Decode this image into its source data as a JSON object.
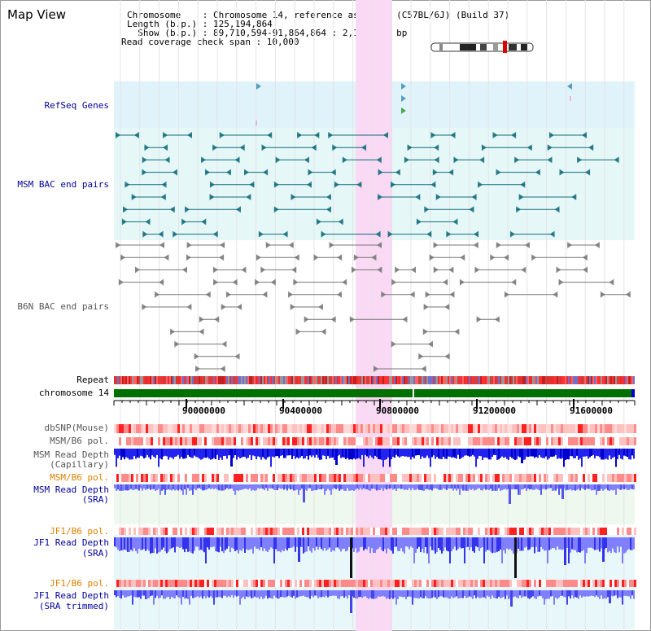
{
  "header": {
    "title": "Map View",
    "info_lines": [
      "Chromosome    : Chromosome 14, reference assembly (C57BL/6J) (Build 37)",
      "Length (b.p.) : 125,194,864",
      "  Show (b.p.) : 89,710,594-91,864,864 : 2,154,271 bp",
      "Read coverage check span : 10,000"
    ]
  },
  "labels": {
    "refseq": "RefSeq Genes",
    "msm_bac": "MSM BAC end pairs",
    "b6n_bac": "B6N BAC end pairs",
    "repeat": "Repeat",
    "chromosome": "chromosome 14",
    "dbsnp": "dbSNP(Mouse)",
    "msm_b6_pol_1": "MSM/B6 pol.",
    "msm_depth_cap_1": "MSM Read Depth",
    "msm_depth_cap_2": "(Capillary)",
    "msm_b6_pol_2": "MSM/B6 pol.",
    "msm_depth_sra_1": "MSM Read Depth",
    "msm_depth_sra_2": "(SRA)",
    "jf1_b6_pol_1": "JF1/B6 pol.",
    "jf1_depth_sra_1": "JF1 Read Depth",
    "jf1_depth_sra_2": "(SRA)",
    "jf1_b6_pol_2": "JF1/B6 pol.",
    "jf1_depth_trim_1": "JF1 Read Depth",
    "jf1_depth_trim_2": "(SRA trimmed)"
  },
  "axis": {
    "ticks": [
      "90000000",
      "90400000",
      "90800000",
      "91200000",
      "91600000"
    ]
  },
  "colors": {
    "refseq_bg": "#e0f3fb",
    "msm_bac_bg": "#e6f7f7",
    "highlight": "#f9d9f3",
    "msm_bac_line": "#116b7a",
    "b6n_bac_line": "#777777",
    "chromosome_bar": "#007000",
    "label_blue": "#000099",
    "label_orange": "#e08000",
    "label_gray": "#555555",
    "depth_blue": "#2222ee",
    "depth_light": "#8080ff"
  }
}
